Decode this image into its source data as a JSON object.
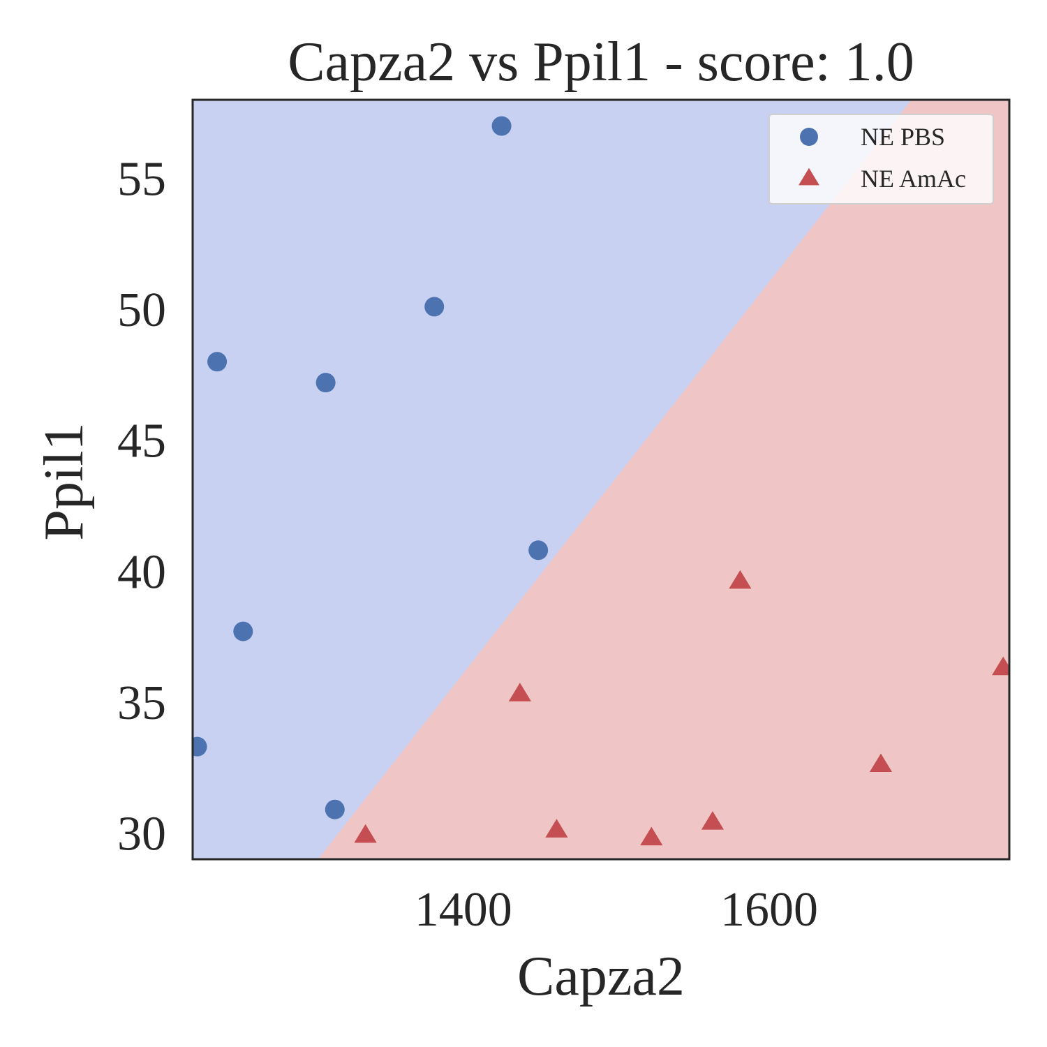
{
  "chart_data": {
    "type": "scatter",
    "title": "Capza2 vs Ppil1 - score: 1.0",
    "xlabel": "Capza2",
    "ylabel": "Ppil1",
    "xlim": [
      1223,
      1757
    ],
    "ylim": [
      29.0,
      58.0
    ],
    "xticks": [
      1400,
      1600
    ],
    "yticks": [
      30,
      35,
      40,
      45,
      50,
      55
    ],
    "grid": false,
    "legend_position": "top-right",
    "decision_boundary": {
      "points": [
        [
          1305,
          29.0
        ],
        [
          1693,
          58.0
        ]
      ]
    },
    "regions": {
      "left": "#c8d1f1",
      "right": "#efc5c5"
    },
    "series": [
      {
        "name": "NE PBS",
        "marker": "circle",
        "color": "#4c72b0",
        "points": [
          {
            "x": 1425,
            "y": 57.0
          },
          {
            "x": 1381,
            "y": 50.1
          },
          {
            "x": 1239,
            "y": 48.0
          },
          {
            "x": 1310,
            "y": 47.2
          },
          {
            "x": 1449,
            "y": 40.8
          },
          {
            "x": 1256,
            "y": 37.7
          },
          {
            "x": 1226,
            "y": 33.3
          },
          {
            "x": 1316,
            "y": 30.9
          }
        ]
      },
      {
        "name": "NE AmAc",
        "marker": "triangle",
        "color": "#c44e52",
        "points": [
          {
            "x": 1581,
            "y": 39.6
          },
          {
            "x": 1437,
            "y": 35.3
          },
          {
            "x": 1753,
            "y": 36.3
          },
          {
            "x": 1673,
            "y": 32.6
          },
          {
            "x": 1336,
            "y": 29.9
          },
          {
            "x": 1461,
            "y": 30.1
          },
          {
            "x": 1523,
            "y": 29.8
          },
          {
            "x": 1563,
            "y": 30.4
          }
        ]
      }
    ]
  }
}
